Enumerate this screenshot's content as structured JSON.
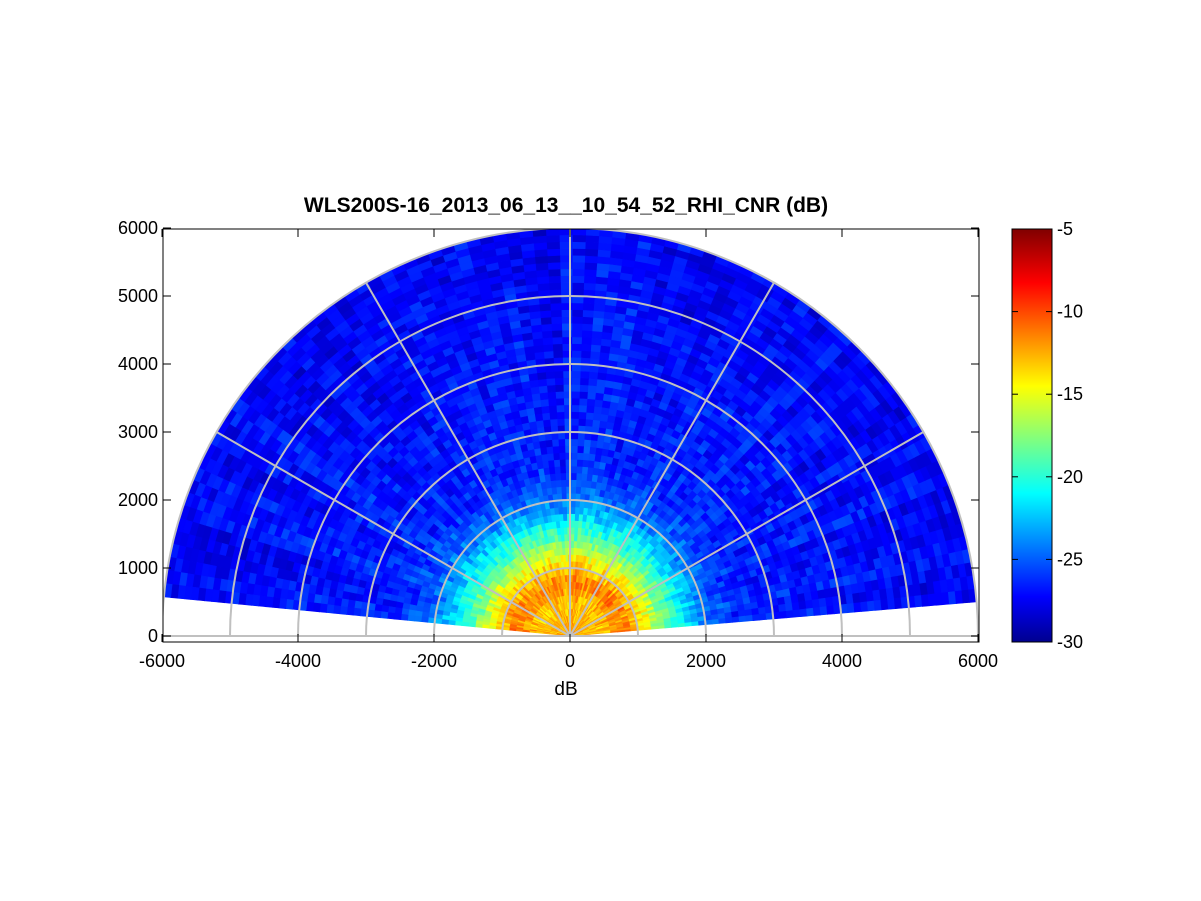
{
  "chart_data": {
    "type": "heatmap",
    "subtype": "polar-rhi",
    "title": "WLS200S-16_2013_06_13__10_54_52_RHI_CNR (dB)",
    "xlabel": "dB",
    "ylabel": "",
    "xlim": [
      -6000,
      6000
    ],
    "ylim": [
      0,
      6000
    ],
    "xticks": [
      -6000,
      -4000,
      -2000,
      0,
      2000,
      4000,
      6000
    ],
    "yticks": [
      0,
      1000,
      2000,
      3000,
      4000,
      5000,
      6000
    ],
    "range_rings": [
      1000,
      2000,
      3000,
      4000,
      5000,
      6000
    ],
    "radial_lines_deg": [
      0,
      30,
      60,
      90,
      120,
      150,
      180
    ],
    "grid": true,
    "colormap": "jet",
    "colorbar": {
      "min": -30,
      "max": -5,
      "ticks": [
        -5,
        -10,
        -15,
        -20,
        -25,
        -30
      ],
      "placement": "right"
    },
    "scan_elevation_deg": [
      4.8,
      174.5
    ],
    "scan_max_range_m": 6000,
    "cnr_profile_by_range": [
      {
        "range_m": 0,
        "cnr_db": -12
      },
      {
        "range_m": 500,
        "cnr_db": -13
      },
      {
        "range_m": 800,
        "cnr_db": -11
      },
      {
        "range_m": 1100,
        "cnr_db": -14
      },
      {
        "range_m": 1400,
        "cnr_db": -18
      },
      {
        "range_m": 1700,
        "cnr_db": -21
      },
      {
        "range_m": 2000,
        "cnr_db": -24
      },
      {
        "range_m": 2500,
        "cnr_db": -26
      },
      {
        "range_m": 4000,
        "cnr_db": -26.5
      },
      {
        "range_m": 6000,
        "cnr_db": -27
      }
    ],
    "notes_colors": {
      "grid": "#c0c0c0",
      "axes": "#000000"
    }
  }
}
